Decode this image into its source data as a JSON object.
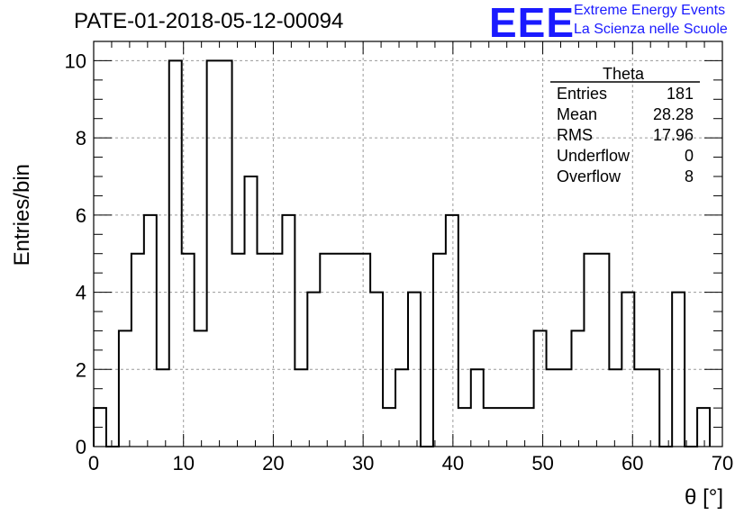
{
  "title": "PATE-01-2018-05-12-00094",
  "logo": {
    "mark": "EEE",
    "line1": "Extreme Energy Events",
    "line2": "La Scienza nelle Scuole",
    "color": "#1a1aff"
  },
  "stats": {
    "name": "Theta",
    "rows": [
      {
        "label": "Entries",
        "value": "181"
      },
      {
        "label": "Mean",
        "value": "28.28"
      },
      {
        "label": "RMS",
        "value": "17.96"
      },
      {
        "label": "Underflow",
        "value": "0"
      },
      {
        "label": "Overflow",
        "value": "8"
      }
    ]
  },
  "chart_data": {
    "type": "histogram",
    "xlabel": "θ [°]",
    "ylabel": "Entries/bin",
    "xlim": [
      0,
      70
    ],
    "ylim": [
      0,
      10.5
    ],
    "xticks": [
      0,
      10,
      20,
      30,
      40,
      50,
      60,
      70
    ],
    "yticks": [
      0,
      2,
      4,
      6,
      8,
      10
    ],
    "grid": true,
    "bin_width": 1.4,
    "bin_edges_start": 0,
    "values": [
      1,
      0,
      3,
      5,
      6,
      2,
      10,
      5,
      3,
      10,
      10,
      5,
      7,
      5,
      5,
      6,
      2,
      4,
      5,
      5,
      5,
      5,
      4,
      1,
      2,
      4,
      0,
      5,
      6,
      1,
      2,
      1,
      1,
      1,
      1,
      3,
      2,
      2,
      3,
      5,
      5,
      2,
      4,
      2,
      2,
      0,
      4,
      0,
      1
    ]
  }
}
